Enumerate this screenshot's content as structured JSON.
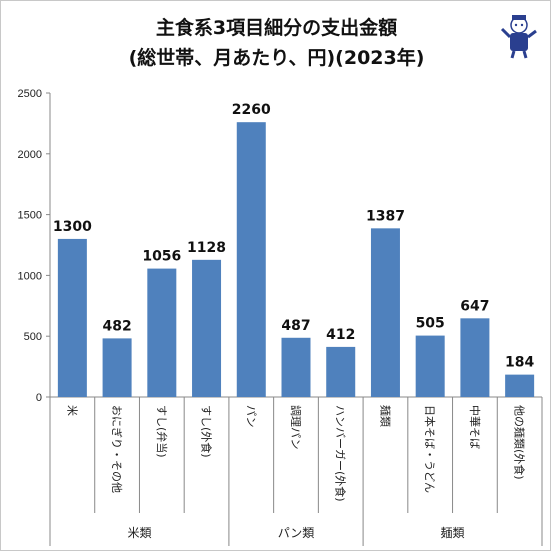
{
  "page": {
    "title_line1": "主食系3項目細分の支出金額",
    "title_line2": "(総世帯、月あたり、円)(2023年)"
  },
  "logo": {
    "icon": "mascot-logo-icon",
    "caption": "ガベージニュース"
  },
  "chart_data": {
    "type": "bar",
    "title": "主食系3項目細分の支出金額 (総世帯、月あたり、円)(2023年)",
    "categories": [
      "米",
      "おにぎり・その他",
      "すし(弁当)",
      "すし(外食)",
      "パン",
      "調理パン",
      "ハンバーガー(外食)",
      "麺類",
      "日本そば・うどん",
      "中華そば",
      "他の麺類(外食)"
    ],
    "values": [
      1300,
      482,
      1056,
      1128,
      2260,
      487,
      412,
      1387,
      505,
      647,
      184
    ],
    "groups": [
      {
        "label": "米類",
        "count": 4
      },
      {
        "label": "パン類",
        "count": 3
      },
      {
        "label": "麺類",
        "count": 4
      }
    ],
    "ylim": [
      0,
      2500
    ],
    "yticks": [
      0,
      500,
      1000,
      1500,
      2000,
      2500
    ],
    "bar_color": "#4f81bd",
    "grid": false,
    "legend": "none",
    "xlabel": "",
    "ylabel": ""
  }
}
